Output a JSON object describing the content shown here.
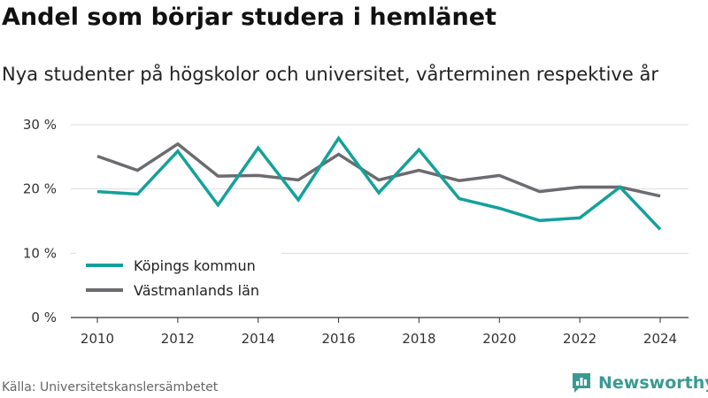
{
  "title": "Andel som börjar studera i hemlänet",
  "subtitle": "Nya studenter på högskolor och universitet, vårterminen respektive år",
  "source": "Källa: Universitetskanslersämbetet",
  "brand": "Newsworthy",
  "colors": {
    "series_1": "#14a19a",
    "series_2": "#6b6b70",
    "grid": "#dddddd",
    "brand": "#3a9a93"
  },
  "chart_data": {
    "type": "line",
    "x": [
      2010,
      2011,
      2012,
      2013,
      2014,
      2015,
      2016,
      2017,
      2018,
      2019,
      2020,
      2021,
      2022,
      2023,
      2024
    ],
    "series": [
      {
        "name": "Köpings kommun",
        "values": [
          19.6,
          19.2,
          25.9,
          17.5,
          26.4,
          18.3,
          27.9,
          19.4,
          26.1,
          18.5,
          17.0,
          15.1,
          15.5,
          20.3,
          13.7
        ]
      },
      {
        "name": "Västmanlands län",
        "values": [
          25.1,
          22.9,
          27.0,
          22.0,
          22.1,
          21.4,
          25.4,
          21.4,
          22.9,
          21.3,
          22.1,
          19.6,
          20.3,
          20.3,
          18.9
        ]
      }
    ],
    "x_ticks": [
      "2010",
      "2012",
      "2014",
      "2016",
      "2018",
      "2020",
      "2022",
      "2024"
    ],
    "y_ticks": [
      "0 %",
      "10 %",
      "20 %",
      "30 %"
    ],
    "ylim": [
      0,
      30
    ],
    "xlim": [
      2010,
      2024
    ],
    "grid": true,
    "legend_position": "bottom-left"
  }
}
